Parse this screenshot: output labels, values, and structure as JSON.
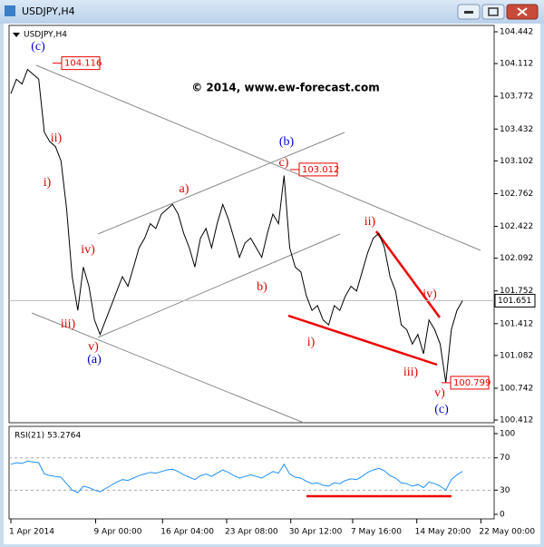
{
  "window_title": "USDJPY,H4",
  "chart_data": [
    {
      "type": "line",
      "title": "USDJPY,H4",
      "annotation": "© 2014, www.ew-forecast.com",
      "color": "#000000",
      "x": [
        0,
        1,
        2,
        3,
        4,
        5,
        6,
        7,
        8,
        9,
        10,
        11,
        12,
        13,
        14,
        15,
        16,
        17,
        18,
        19,
        20,
        21,
        22,
        23,
        24,
        25,
        26,
        27,
        28,
        29,
        30,
        31,
        32,
        33,
        34,
        35,
        36,
        37,
        38,
        39,
        40,
        41,
        42,
        43,
        44,
        45,
        46,
        47,
        48,
        49,
        50,
        51,
        52,
        53,
        54,
        55,
        56,
        57,
        58,
        59,
        60,
        61,
        62,
        63,
        64,
        65,
        66,
        67,
        68,
        69,
        70,
        71,
        72,
        73,
        74,
        75,
        76,
        77,
        78,
        79,
        80,
        81
      ],
      "values": [
        103.8,
        103.95,
        103.9,
        104.05,
        104.0,
        103.95,
        103.4,
        103.3,
        103.25,
        103.1,
        102.6,
        101.9,
        101.55,
        102.0,
        101.8,
        101.45,
        101.3,
        101.45,
        101.6,
        101.75,
        101.9,
        101.8,
        102.0,
        102.2,
        102.3,
        102.45,
        102.4,
        102.55,
        102.6,
        102.65,
        102.55,
        102.35,
        102.2,
        102.0,
        102.3,
        102.4,
        102.2,
        102.45,
        102.65,
        102.5,
        102.3,
        102.1,
        102.25,
        102.3,
        102.2,
        102.1,
        102.35,
        102.55,
        102.45,
        102.95,
        102.2,
        102.0,
        101.95,
        101.7,
        101.55,
        101.6,
        101.45,
        101.4,
        101.6,
        101.55,
        101.7,
        101.8,
        101.75,
        101.95,
        102.15,
        102.3,
        102.35,
        102.2,
        101.9,
        101.75,
        101.4,
        101.35,
        101.2,
        101.3,
        101.1,
        101.45,
        101.35,
        101.2,
        100.8,
        101.35,
        101.55,
        101.65
      ],
      "xlim": [
        0,
        87
      ],
      "xticks": [
        {
          "value": 0,
          "label": "1 Apr 2014"
        },
        {
          "value": 15.2,
          "label": "9 Apr 00:00"
        },
        {
          "value": 27.2,
          "label": "16 Apr 04:00"
        },
        {
          "value": 38.7,
          "label": "23 Apr 08:00"
        },
        {
          "value": 50.2,
          "label": "30 Apr 12:00"
        },
        {
          "value": 61.3,
          "label": "7 May 16:00"
        },
        {
          "value": 72.8,
          "label": "14 May 20:00"
        },
        {
          "value": 84.3,
          "label": "22 May 00:00"
        }
      ],
      "ylim": [
        100.384,
        104.508
      ],
      "yticks": [
        104.442,
        104.112,
        103.772,
        103.432,
        103.102,
        102.762,
        102.422,
        102.092,
        101.752,
        101.412,
        101.082,
        100.742,
        100.412
      ],
      "price_labels": [
        104.116,
        103.012,
        100.799
      ],
      "current_price": 101.651,
      "waves": [
        "(c)",
        "ii)",
        "i)",
        "iv)",
        "iii)",
        "v)",
        "(a)",
        "a)",
        "b)",
        "(b)",
        "c)",
        "ii)",
        "i)",
        "iii)",
        "iv)",
        "v)",
        "(c)"
      ]
    },
    {
      "type": "line",
      "title": "RSI(21) 53.2764",
      "color": "#1e90ff",
      "values": [
        62,
        64,
        63,
        66,
        65,
        64,
        50,
        48,
        47,
        46,
        38,
        30,
        27,
        35,
        33,
        30,
        28,
        32,
        36,
        40,
        43,
        42,
        45,
        48,
        50,
        52,
        51,
        53,
        55,
        56,
        53,
        49,
        46,
        43,
        48,
        50,
        47,
        51,
        55,
        52,
        48,
        45,
        47,
        49,
        47,
        45,
        49,
        53,
        51,
        62,
        50,
        46,
        45,
        41,
        38,
        39,
        36,
        35,
        39,
        38,
        42,
        44,
        43,
        47,
        52,
        55,
        57,
        54,
        48,
        45,
        39,
        38,
        35,
        37,
        33,
        40,
        38,
        35,
        30,
        43,
        49,
        53.28
      ],
      "ylim": [
        -5.6,
        109
      ],
      "yticks": [
        0,
        30,
        70,
        100
      ],
      "levels": [
        30,
        70
      ]
    }
  ]
}
